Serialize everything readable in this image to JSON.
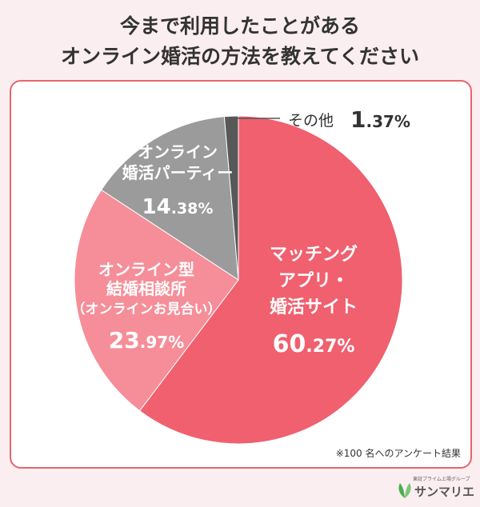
{
  "title": {
    "line1": "今まで利用したことがある",
    "line2": "オンライン婚活の方法を教えてください"
  },
  "footnote": "※100 名へのアンケート結果",
  "logo": {
    "small_text": "東証プライム上場グループ",
    "name": "サンマリエ",
    "icon": "leaf-icon"
  },
  "colors": {
    "background": "#fbeef0",
    "accent": "#e7656f"
  },
  "chart_data": {
    "type": "pie",
    "title": "今まで利用したことがある オンライン婚活の方法を教えてください",
    "slices": [
      {
        "label": [
          "マッチング",
          "アプリ・",
          "婚活サイト"
        ],
        "value": 60.27,
        "display_int": "60",
        "display_dec": ".27%",
        "color": "#f0606f",
        "text_color": "#ffffff"
      },
      {
        "label": [
          "オンライン型",
          "結婚相談所",
          "（オンラインお見合い）"
        ],
        "value": 23.97,
        "display_int": "23",
        "display_dec": ".97%",
        "color": "#f58e99",
        "text_color": "#ffffff"
      },
      {
        "label": [
          "オンライン",
          "婚活パーティー"
        ],
        "value": 14.38,
        "display_int": "14",
        "display_dec": ".38%",
        "color": "#9b9b9b",
        "text_color": "#ffffff"
      },
      {
        "label": [
          "その他"
        ],
        "value": 1.37,
        "display_int": "1",
        "display_dec": ".37%",
        "color": "#585858",
        "text_color": "#333333"
      }
    ]
  }
}
